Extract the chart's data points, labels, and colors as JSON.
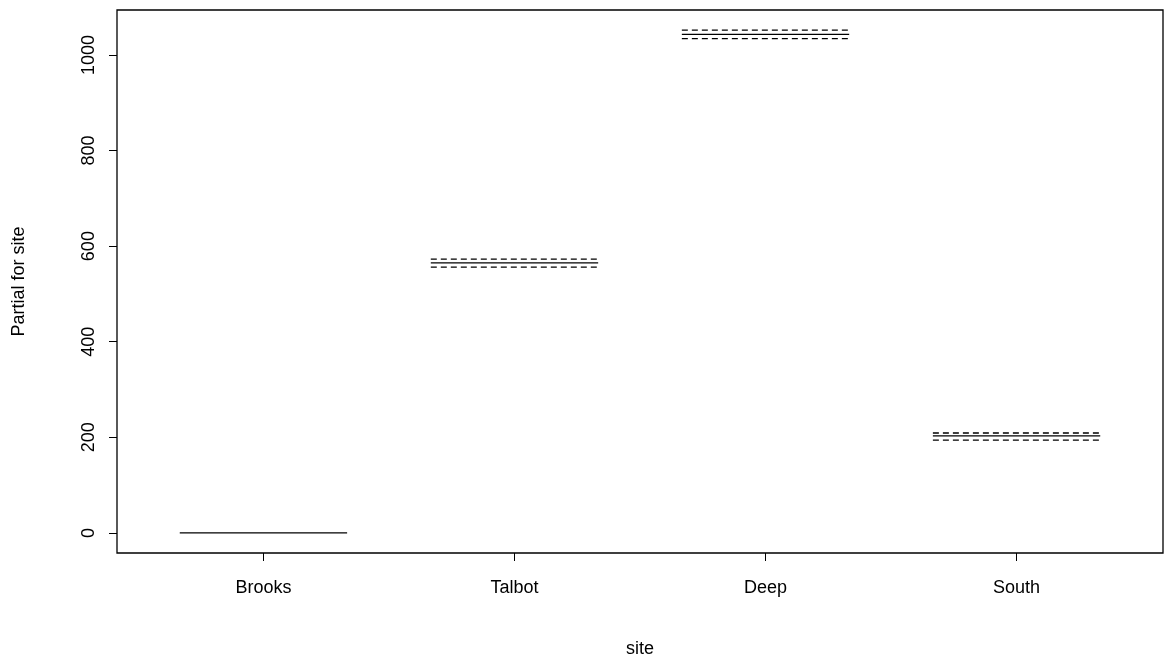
{
  "chart_data": {
    "type": "line",
    "xlabel": "site",
    "ylabel": "Partial for site",
    "color": "#000000",
    "marker": "none",
    "grid": false,
    "categories": [
      null,
      null,
      null,
      "Brooks",
      null,
      null,
      null,
      null,
      null,
      "Talbot",
      null,
      null,
      null,
      null,
      null,
      "Deep",
      null,
      null,
      null,
      null,
      null,
      "South",
      null,
      null,
      null
    ],
    "ylim": [
      -42,
      1094
    ],
    "yticks": [
      0,
      200,
      400,
      600,
      800,
      1000
    ],
    "series": [
      {
        "values": [
          null,
          0,
          0,
          0,
          0,
          0,
          null,
          null,
          null,
          null,
          null,
          null,
          null,
          null,
          null,
          null,
          null,
          null,
          null,
          null,
          null,
          null,
          null,
          null,
          null
        ],
        "line_style": "solid"
      },
      {
        "values": [
          null,
          null,
          null,
          null,
          null,
          null,
          null,
          565,
          565,
          565,
          565,
          565,
          null,
          null,
          null,
          null,
          null,
          null,
          null,
          null,
          null,
          null,
          null,
          null,
          null
        ],
        "line_style": "solid"
      },
      {
        "values": [
          null,
          null,
          null,
          null,
          null,
          null,
          null,
          573,
          573,
          573,
          573,
          573,
          null,
          null,
          null,
          null,
          null,
          null,
          null,
          null,
          null,
          null,
          null,
          null,
          null
        ],
        "line_style": "dashed"
      },
      {
        "values": [
          null,
          null,
          null,
          null,
          null,
          null,
          null,
          556,
          556,
          556,
          556,
          556,
          null,
          null,
          null,
          null,
          null,
          null,
          null,
          null,
          null,
          null,
          null,
          null,
          null
        ],
        "line_style": "dashed"
      },
      {
        "values": [
          null,
          null,
          null,
          null,
          null,
          null,
          null,
          null,
          null,
          null,
          null,
          null,
          null,
          1043,
          1043,
          1043,
          1043,
          1043,
          null,
          null,
          null,
          null,
          null,
          null,
          null
        ],
        "line_style": "solid"
      },
      {
        "values": [
          null,
          null,
          null,
          null,
          null,
          null,
          null,
          null,
          null,
          null,
          null,
          null,
          null,
          1052,
          1052,
          1052,
          1052,
          1052,
          null,
          null,
          null,
          null,
          null,
          null,
          null
        ],
        "line_style": "dashed"
      },
      {
        "values": [
          null,
          null,
          null,
          null,
          null,
          null,
          null,
          null,
          null,
          null,
          null,
          null,
          null,
          1034,
          1034,
          1034,
          1034,
          1034,
          null,
          null,
          null,
          null,
          null,
          null,
          null
        ],
        "line_style": "dashed"
      },
      {
        "values": [
          null,
          null,
          null,
          null,
          null,
          null,
          null,
          null,
          null,
          null,
          null,
          null,
          null,
          null,
          null,
          null,
          null,
          null,
          null,
          203,
          203,
          203,
          203,
          203,
          null
        ],
        "line_style": "solid"
      },
      {
        "values": [
          null,
          null,
          null,
          null,
          null,
          null,
          null,
          null,
          null,
          null,
          null,
          null,
          null,
          null,
          null,
          null,
          null,
          null,
          null,
          209,
          209,
          209,
          209,
          209,
          null
        ],
        "line_style": "dashed"
      },
      {
        "values": [
          null,
          null,
          null,
          null,
          null,
          null,
          null,
          null,
          null,
          null,
          null,
          null,
          null,
          null,
          null,
          null,
          null,
          null,
          null,
          194,
          194,
          194,
          194,
          194,
          null
        ],
        "line_style": "dashed"
      }
    ]
  }
}
